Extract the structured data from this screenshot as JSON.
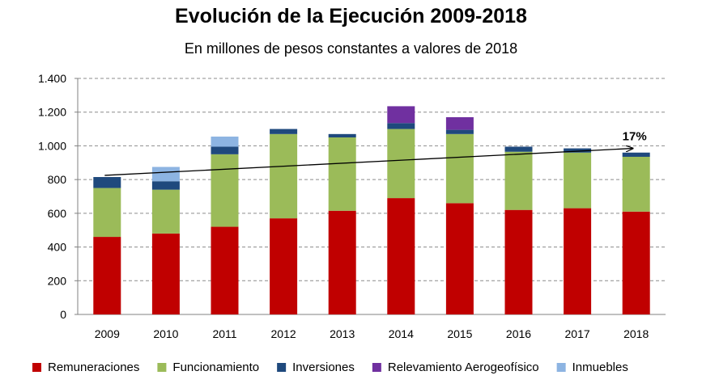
{
  "chart_data": {
    "type": "bar",
    "stacked": true,
    "title": "Evolución  de la Ejecución 2009-2018",
    "subtitle": "En millones de pesos constantes a valores de 2018",
    "categories": [
      "2009",
      "2010",
      "2011",
      "2012",
      "2013",
      "2014",
      "2015",
      "2016",
      "2017",
      "2018"
    ],
    "ylim": [
      0,
      1400
    ],
    "yticks": [
      0,
      200,
      400,
      600,
      800,
      1000,
      1200,
      1400
    ],
    "ytick_labels": [
      "0",
      "200",
      "400",
      "600",
      "800",
      "1.000",
      "1.200",
      "1.400"
    ],
    "grid": true,
    "legend_position": "bottom",
    "series": [
      {
        "name": "Remuneraciones",
        "color": "#c00000",
        "values": [
          460,
          480,
          520,
          570,
          615,
          690,
          660,
          620,
          630,
          610
        ]
      },
      {
        "name": "Funcionamiento",
        "color": "#9bbb59",
        "values": [
          290,
          260,
          430,
          500,
          435,
          410,
          410,
          345,
          330,
          325
        ]
      },
      {
        "name": "Inversiones",
        "color": "#1f497d",
        "values": [
          65,
          50,
          45,
          30,
          20,
          35,
          25,
          30,
          25,
          25
        ]
      },
      {
        "name": "Relevamiento Aerogeofísico",
        "color": "#7030a0",
        "values": [
          0,
          0,
          0,
          0,
          0,
          100,
          75,
          0,
          0,
          0
        ]
      },
      {
        "name": "Inmuebles",
        "color": "#8db4e2",
        "values": [
          0,
          85,
          60,
          0,
          0,
          0,
          0,
          0,
          0,
          0
        ]
      }
    ],
    "trend": {
      "from_category": "2009",
      "from_value": 825,
      "to_category": "2018",
      "to_value": 985,
      "label": "17%"
    }
  }
}
